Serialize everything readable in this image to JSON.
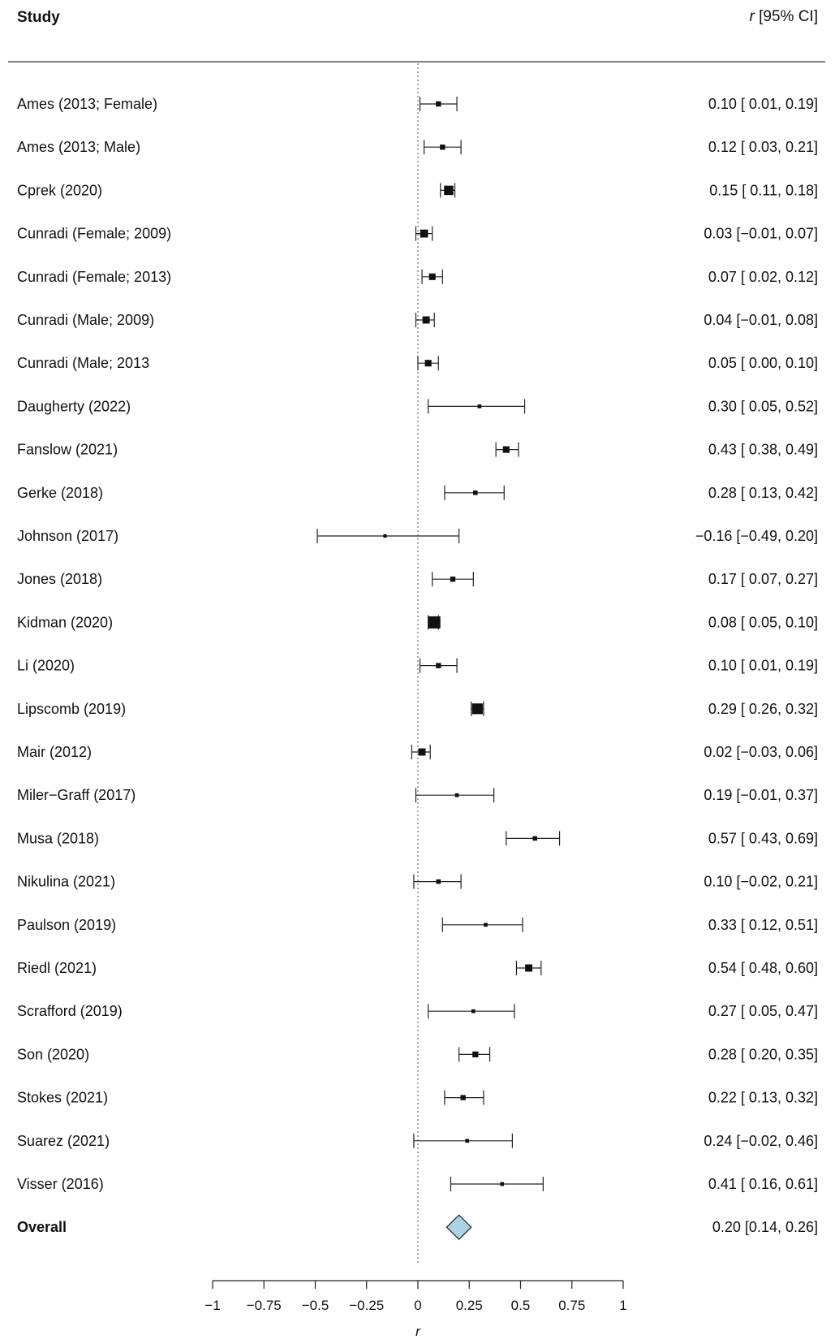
{
  "header": {
    "study_label": "Study",
    "effect_label_italic": "r",
    "effect_label_rest": " [95% CI]"
  },
  "chart_data": {
    "type": "forest",
    "x_axis": {
      "label": "r",
      "ticks": [
        -1,
        -0.75,
        -0.5,
        -0.25,
        0,
        0.25,
        0.5,
        0.75,
        1
      ],
      "tick_labels": [
        "−1",
        "−0.75",
        "−0.5",
        "−0.25",
        "0",
        "0.25",
        "0.5",
        "0.75",
        "1"
      ],
      "range": [
        -1,
        1
      ],
      "reference_line": 0
    },
    "studies": [
      {
        "name": "Ames (2013; Female)",
        "r": 0.1,
        "lo": 0.01,
        "hi": 0.19,
        "weight": 2,
        "text": "0.10 [ 0.01, 0.19]"
      },
      {
        "name": "Ames (2013; Male)",
        "r": 0.12,
        "lo": 0.03,
        "hi": 0.21,
        "weight": 2,
        "text": "0.12 [ 0.03, 0.21]"
      },
      {
        "name": "Cprek (2020)",
        "r": 0.15,
        "lo": 0.11,
        "hi": 0.18,
        "weight": 5,
        "text": "0.15 [ 0.11, 0.18]"
      },
      {
        "name": "Cunradi (Female; 2009)",
        "r": 0.03,
        "lo": -0.01,
        "hi": 0.07,
        "weight": 4,
        "text": "0.03 [−0.01, 0.07]"
      },
      {
        "name": "Cunradi (Female; 2013)",
        "r": 0.07,
        "lo": 0.02,
        "hi": 0.12,
        "weight": 3,
        "text": "0.07 [ 0.02, 0.12]"
      },
      {
        "name": "Cunradi (Male; 2009)",
        "r": 0.04,
        "lo": -0.01,
        "hi": 0.08,
        "weight": 3.5,
        "text": "0.04 [−0.01, 0.08]"
      },
      {
        "name": "Cunradi (Male; 2013",
        "r": 0.05,
        "lo": 0.0,
        "hi": 0.1,
        "weight": 3,
        "text": "0.05 [ 0.00, 0.10]"
      },
      {
        "name": "Daugherty (2022)",
        "r": 0.3,
        "lo": 0.05,
        "hi": 0.52,
        "weight": 1,
        "text": "0.30 [ 0.05, 0.52]"
      },
      {
        "name": "Fanslow (2021)",
        "r": 0.43,
        "lo": 0.38,
        "hi": 0.49,
        "weight": 3,
        "text": "0.43 [ 0.38, 0.49]"
      },
      {
        "name": "Gerke (2018)",
        "r": 0.28,
        "lo": 0.13,
        "hi": 0.42,
        "weight": 1.5,
        "text": "0.28 [ 0.13, 0.42]"
      },
      {
        "name": "Johnson (2017)",
        "r": -0.16,
        "lo": -0.49,
        "hi": 0.2,
        "weight": 0.7,
        "text": "−0.16 [−0.49, 0.20]"
      },
      {
        "name": "Jones (2018)",
        "r": 0.17,
        "lo": 0.07,
        "hi": 0.27,
        "weight": 2,
        "text": "0.17 [ 0.07, 0.27]"
      },
      {
        "name": "Kidman (2020)",
        "r": 0.08,
        "lo": 0.05,
        "hi": 0.1,
        "weight": 7,
        "text": "0.08 [ 0.05, 0.10]"
      },
      {
        "name": "Li (2020)",
        "r": 0.1,
        "lo": 0.01,
        "hi": 0.19,
        "weight": 2,
        "text": "0.10 [ 0.01, 0.19]"
      },
      {
        "name": "Lipscomb (2019)",
        "r": 0.29,
        "lo": 0.26,
        "hi": 0.32,
        "weight": 6,
        "text": "0.29 [ 0.26, 0.32]"
      },
      {
        "name": "Mair (2012)",
        "r": 0.02,
        "lo": -0.03,
        "hi": 0.06,
        "weight": 3.5,
        "text": "0.02 [−0.03, 0.06]"
      },
      {
        "name": "Miler−Graff (2017)",
        "r": 0.19,
        "lo": -0.01,
        "hi": 0.37,
        "weight": 1,
        "text": "0.19 [−0.01, 0.37]"
      },
      {
        "name": "Musa (2018)",
        "r": 0.57,
        "lo": 0.43,
        "hi": 0.69,
        "weight": 1.5,
        "text": "0.57 [ 0.43, 0.69]"
      },
      {
        "name": "Nikulina (2021)",
        "r": 0.1,
        "lo": -0.02,
        "hi": 0.21,
        "weight": 1.5,
        "text": "0.10 [−0.02, 0.21]"
      },
      {
        "name": "Paulson (2019)",
        "r": 0.33,
        "lo": 0.12,
        "hi": 0.51,
        "weight": 1,
        "text": "0.33 [ 0.12, 0.51]"
      },
      {
        "name": "Riedl (2021)",
        "r": 0.54,
        "lo": 0.48,
        "hi": 0.6,
        "weight": 3.5,
        "text": "0.54 [ 0.48, 0.60]"
      },
      {
        "name": "Scrafford (2019)",
        "r": 0.27,
        "lo": 0.05,
        "hi": 0.47,
        "weight": 1,
        "text": "0.27 [ 0.05, 0.47]"
      },
      {
        "name": "Son (2020)",
        "r": 0.28,
        "lo": 0.2,
        "hi": 0.35,
        "weight": 2.5,
        "text": "0.28 [ 0.20, 0.35]"
      },
      {
        "name": "Stokes (2021)",
        "r": 0.22,
        "lo": 0.13,
        "hi": 0.32,
        "weight": 2,
        "text": "0.22 [ 0.13, 0.32]"
      },
      {
        "name": "Suarez (2021)",
        "r": 0.24,
        "lo": -0.02,
        "hi": 0.46,
        "weight": 1,
        "text": "0.24 [−0.02, 0.46]"
      },
      {
        "name": "Visser (2016)",
        "r": 0.41,
        "lo": 0.16,
        "hi": 0.61,
        "weight": 1,
        "text": "0.41 [ 0.16, 0.61]"
      }
    ],
    "overall": {
      "name": "Overall",
      "r": 0.2,
      "lo": 0.14,
      "hi": 0.26,
      "text": "0.20 [0.14, 0.26]",
      "fill": "#a9d3e2"
    }
  }
}
